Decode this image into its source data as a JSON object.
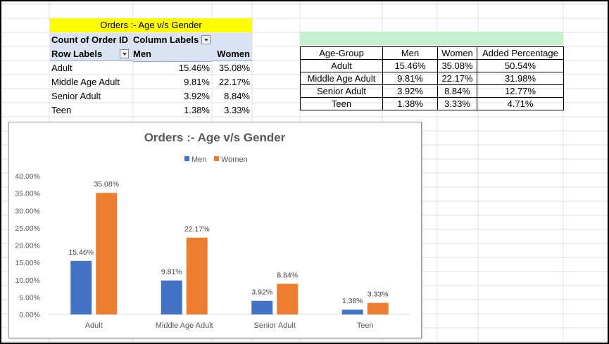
{
  "pivot": {
    "title": "Orders :- Age v/s Gender",
    "count_label": "Count of Order ID",
    "column_labels": "Column Labels",
    "row_labels": "Row Labels",
    "col_men": "Men",
    "col_women": "Women",
    "rows": [
      {
        "label": "Adult",
        "men": "15.46%",
        "women": "35.08%"
      },
      {
        "label": "Middle Age Adult",
        "men": "9.81%",
        "women": "22.17%"
      },
      {
        "label": "Senior Adult",
        "men": "3.92%",
        "women": "8.84%"
      },
      {
        "label": "Teen",
        "men": "1.38%",
        "women": "3.33%"
      }
    ]
  },
  "age_table": {
    "headers": [
      "Age-Group",
      "Men",
      "Women",
      "Added Percentage"
    ],
    "rows": [
      [
        "Adult",
        "15.46%",
        "35.08%",
        "50.54%"
      ],
      [
        "Middle Age Adult",
        "9.81%",
        "22.17%",
        "31.98%"
      ],
      [
        "Senior Adult",
        "3.92%",
        "8.84%",
        "12.77%"
      ],
      [
        "Teen",
        "1.38%",
        "3.33%",
        "4.71%"
      ]
    ]
  },
  "colors": {
    "men": "#4472c4",
    "women": "#ed7d31",
    "pivot_title_bg": "#ffff00",
    "pivot_header_bg": "#dbe3f3",
    "green_band": "#c6efce"
  },
  "chart_data": {
    "type": "bar",
    "title": "Orders :- Age v/s Gender",
    "categories": [
      "Adult",
      "Middle Age Adult",
      "Senior Adult",
      "Teen"
    ],
    "series": [
      {
        "name": "Men",
        "values": [
          15.46,
          9.81,
          3.92,
          1.38
        ],
        "labels": [
          "15.46%",
          "9.81%",
          "3.92%",
          "1.38%"
        ],
        "color": "#4472c4"
      },
      {
        "name": "Women",
        "values": [
          35.08,
          22.17,
          8.84,
          3.33
        ],
        "labels": [
          "35.08%",
          "22.17%",
          "8.84%",
          "3.33%"
        ],
        "color": "#ed7d31"
      }
    ],
    "ylim": [
      0,
      40
    ],
    "yticks": [
      "0.00%",
      "5.00%",
      "10.00%",
      "15.00%",
      "20.00%",
      "25.00%",
      "30.00%",
      "35.00%",
      "40.00%"
    ],
    "legend": "top",
    "grid": false
  }
}
